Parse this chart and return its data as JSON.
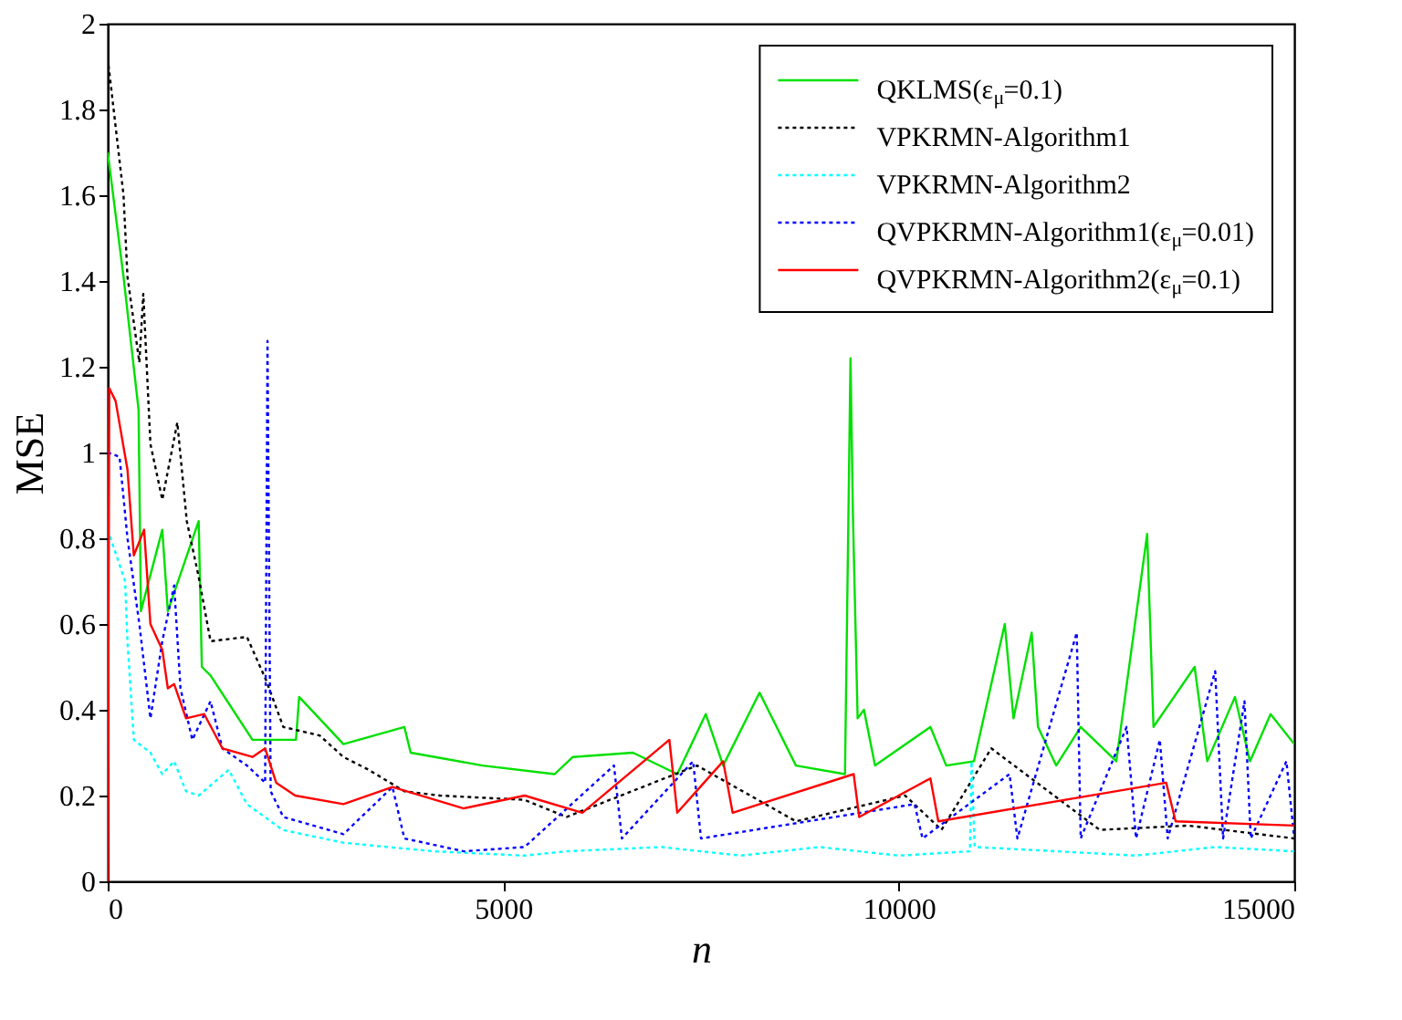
{
  "chart_data": {
    "type": "line",
    "xlabel": "n",
    "ylabel": "MSE",
    "xlim": [
      0,
      15000
    ],
    "ylim": [
      0,
      2
    ],
    "xticks": [
      0,
      5000,
      10000,
      15000
    ],
    "yticks": [
      0,
      0.2,
      0.4,
      0.6,
      0.8,
      1,
      1.2,
      1.4,
      1.6,
      1.8,
      2
    ],
    "grid": false,
    "legend": "top right",
    "marker": "none",
    "series": [
      {
        "name": "QKLMS(ε$_{μ}$=0.1)",
        "color": "#00e000",
        "line_style": "solid",
        "x": [
          0,
          200,
          390,
          420,
          690,
          760,
          1150,
          1190,
          1300,
          1830,
          2380,
          2420,
          2980,
          3750,
          3830,
          4740,
          5650,
          5880,
          6640,
          7200,
          7560,
          7780,
          8240,
          8700,
          9320,
          9390,
          9420,
          9480,
          9560,
          9700,
          10400,
          10600,
          10950,
          11340,
          11450,
          11680,
          11760,
          11990,
          12300,
          12750,
          13140,
          13220,
          13740,
          13900,
          14250,
          14440,
          14700,
          15000
        ],
        "values": [
          1.7,
          1.41,
          1.1,
          0.63,
          0.82,
          0.63,
          0.84,
          0.5,
          0.48,
          0.33,
          0.33,
          0.43,
          0.32,
          0.36,
          0.3,
          0.27,
          0.25,
          0.29,
          0.3,
          0.25,
          0.39,
          0.27,
          0.44,
          0.27,
          0.25,
          1.22,
          0.86,
          0.38,
          0.4,
          0.27,
          0.36,
          0.27,
          0.28,
          0.6,
          0.38,
          0.58,
          0.36,
          0.27,
          0.36,
          0.28,
          0.81,
          0.36,
          0.5,
          0.28,
          0.43,
          0.28,
          0.39,
          0.32
        ]
      },
      {
        "name": "VPKRMN-Algorithm1",
        "color": "#000000",
        "line_style": "dotted",
        "x": [
          0,
          200,
          250,
          400,
          450,
          540,
          690,
          880,
          1000,
          1150,
          1300,
          1760,
          2000,
          2220,
          2680,
          2980,
          3300,
          3750,
          4200,
          5270,
          5800,
          7450,
          8700,
          10080,
          10540,
          11170,
          12540,
          13660,
          15000
        ],
        "values": [
          1.92,
          1.6,
          1.41,
          1.21,
          1.37,
          1.02,
          0.89,
          1.07,
          0.84,
          0.71,
          0.56,
          0.57,
          0.47,
          0.36,
          0.34,
          0.29,
          0.26,
          0.21,
          0.2,
          0.19,
          0.15,
          0.27,
          0.14,
          0.2,
          0.12,
          0.31,
          0.12,
          0.13,
          0.1
        ]
      },
      {
        "name": "VPKRMN-Algorithm2",
        "color": "#00ffff",
        "line_style": "dotted",
        "x": [
          0,
          220,
          250,
          330,
          540,
          690,
          840,
          990,
          1150,
          1530,
          1760,
          2210,
          2980,
          4120,
          5270,
          5800,
          7000,
          8000,
          9000,
          10000,
          10900,
          10920,
          10960,
          12000,
          13000,
          14000,
          15000
        ],
        "values": [
          0.82,
          0.7,
          0.56,
          0.33,
          0.3,
          0.25,
          0.28,
          0.21,
          0.2,
          0.26,
          0.18,
          0.12,
          0.09,
          0.07,
          0.06,
          0.07,
          0.08,
          0.06,
          0.08,
          0.06,
          0.07,
          0.28,
          0.08,
          0.07,
          0.06,
          0.08,
          0.07
        ]
      },
      {
        "name": "QVPKRMN-Algorithm1(ε$_{μ}$=0.01)",
        "color": "#0000ff",
        "line_style": "dotted",
        "x": [
          0,
          150,
          250,
          400,
          540,
          690,
          840,
          920,
          1070,
          1300,
          1450,
          1760,
          1990,
          2020,
          2060,
          2220,
          2980,
          3600,
          3750,
          4500,
          5270,
          6400,
          6500,
          7400,
          7500,
          10200,
          10300,
          11400,
          11500,
          12250,
          12300,
          12880,
          13000,
          13300,
          13400,
          14000,
          14100,
          14370,
          14450,
          14900,
          15000
        ],
        "values": [
          1.0,
          0.99,
          0.8,
          0.6,
          0.38,
          0.56,
          0.69,
          0.45,
          0.33,
          0.42,
          0.31,
          0.27,
          0.23,
          1.26,
          0.21,
          0.15,
          0.11,
          0.22,
          0.1,
          0.07,
          0.08,
          0.27,
          0.1,
          0.28,
          0.1,
          0.18,
          0.1,
          0.25,
          0.1,
          0.58,
          0.1,
          0.36,
          0.1,
          0.33,
          0.1,
          0.49,
          0.1,
          0.42,
          0.1,
          0.28,
          0.1
        ]
      },
      {
        "name": "QVPKRMN-Algorithm2(ε$_{μ}$=0.1)",
        "color": "#ff0000",
        "line_style": "solid",
        "x": [
          0,
          20,
          100,
          250,
          330,
          460,
          540,
          690,
          760,
          840,
          990,
          1220,
          1450,
          1830,
          1990,
          2130,
          2370,
          2980,
          3600,
          4500,
          5270,
          6000,
          7100,
          7200,
          7780,
          7900,
          9430,
          9500,
          10400,
          10500,
          13380,
          13500,
          15000
        ],
        "values": [
          0,
          1.15,
          1.12,
          0.96,
          0.76,
          0.82,
          0.6,
          0.54,
          0.45,
          0.46,
          0.38,
          0.39,
          0.31,
          0.29,
          0.31,
          0.23,
          0.2,
          0.18,
          0.22,
          0.17,
          0.2,
          0.16,
          0.33,
          0.16,
          0.28,
          0.16,
          0.25,
          0.15,
          0.24,
          0.14,
          0.23,
          0.14,
          0.13
        ]
      }
    ]
  }
}
